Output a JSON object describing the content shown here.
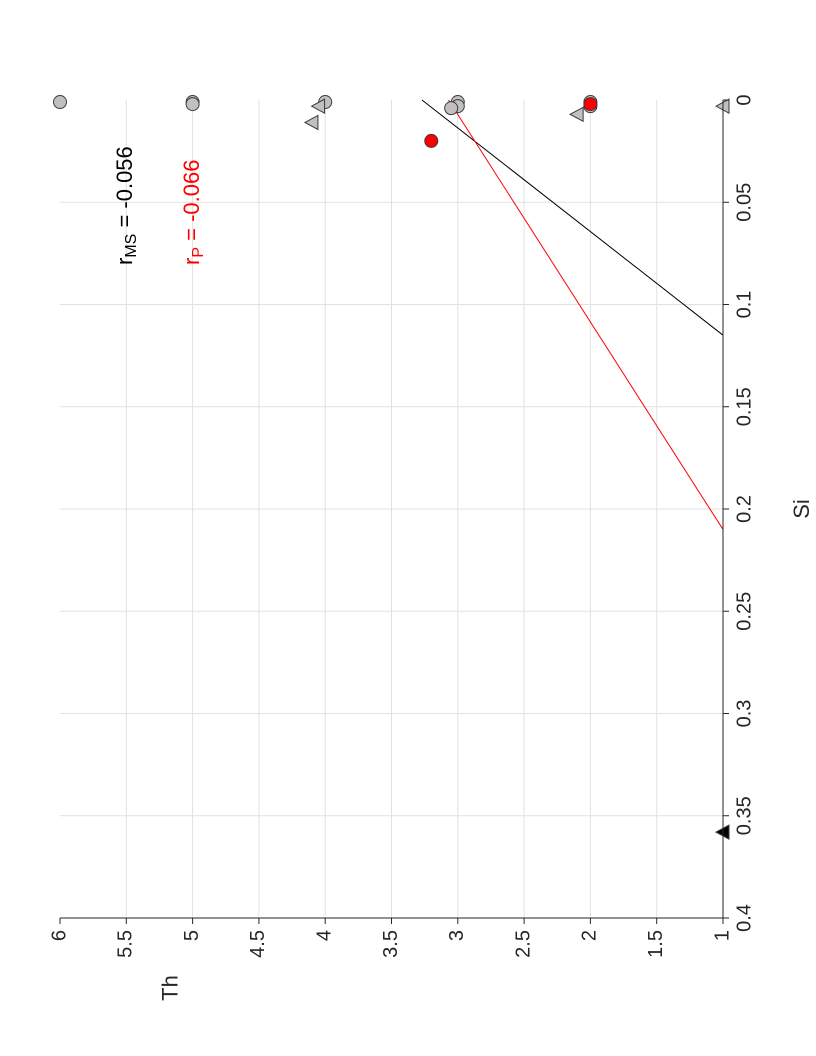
{
  "chart_data": {
    "type": "scatter",
    "orientation": "rotated-90-ccw",
    "xlabel": "Si",
    "ylabel": "Th",
    "xlim": [
      0,
      0.4
    ],
    "ylim": [
      1,
      6
    ],
    "grid": true,
    "x_ticks": [
      "0",
      "0.05",
      "0.1",
      "0.15",
      "0.2",
      "0.25",
      "0.3",
      "0.35",
      "0.4"
    ],
    "y_ticks": [
      "1",
      "1.5",
      "2",
      "2.5",
      "3",
      "3.5",
      "4",
      "4.5",
      "5",
      "5.5",
      "6"
    ],
    "annotations": [
      {
        "base": "r",
        "sub": "MS",
        "text": " = -0.056",
        "color": "#000000"
      },
      {
        "base": "r",
        "sub": "P",
        "text": " = -0.066",
        "color": "#ff0000"
      }
    ],
    "series": [
      {
        "marker": "circle",
        "fill": "#c0c0c0",
        "points": [
          [
            0.001,
            6
          ],
          [
            0.001,
            5
          ],
          [
            0.002,
            5
          ],
          [
            0.001,
            4
          ],
          [
            0.001,
            3
          ],
          [
            0.003,
            3
          ],
          [
            0.004,
            3.05
          ],
          [
            0.001,
            2
          ],
          [
            0.003,
            2
          ]
        ]
      },
      {
        "marker": "circle",
        "fill": "#ff0000",
        "points": [
          [
            0.02,
            3.2
          ],
          [
            0.002,
            2
          ]
        ]
      },
      {
        "marker": "triangle",
        "fill": "#c0c0c0",
        "points": [
          [
            0.011,
            4.1
          ],
          [
            0.003,
            4.05
          ],
          [
            0.007,
            2.1
          ],
          [
            0.003,
            1
          ]
        ]
      },
      {
        "marker": "triangle",
        "fill": "#000000",
        "points": [
          [
            0.358,
            1
          ]
        ]
      }
    ],
    "fit_lines": [
      {
        "color": "#000000",
        "x": [
          0,
          0.115
        ],
        "y": [
          3.27,
          1
        ]
      },
      {
        "color": "#ff0000",
        "x": [
          0,
          0.21
        ],
        "y": [
          3.07,
          1
        ]
      }
    ]
  }
}
